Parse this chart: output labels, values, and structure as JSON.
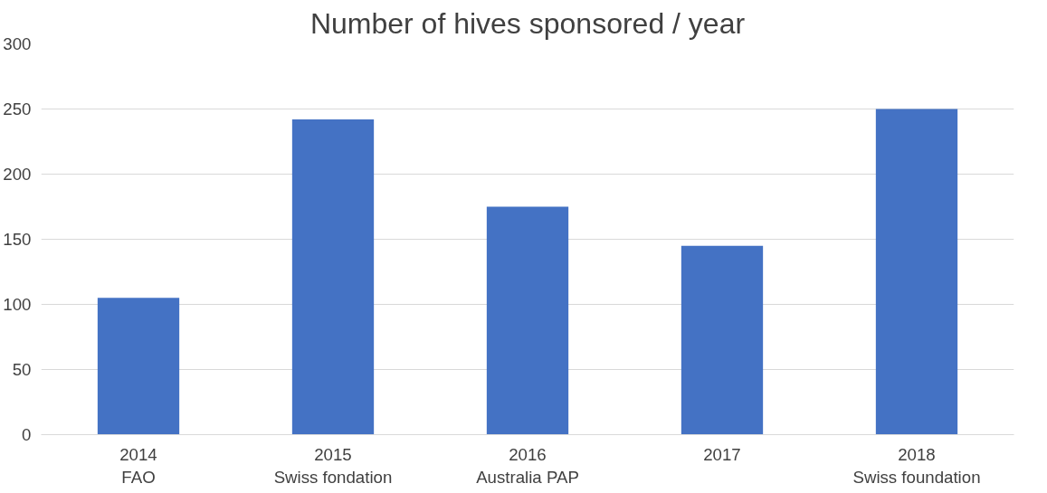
{
  "chart_data": {
    "type": "bar",
    "title": "Number of hives sponsored / year",
    "categories": [
      "2014\nFAO",
      "2015\nSwiss fondation",
      "2016\nAustralia PAP",
      "2017",
      "2018\nSwiss foundation"
    ],
    "series": [
      {
        "color": "#4472c4",
        "values": [
          105,
          242,
          175,
          145,
          250
        ]
      }
    ],
    "ylim": [
      0,
      300
    ],
    "yticks": [
      0,
      50,
      100,
      150,
      200,
      250,
      300
    ],
    "grid": "y"
  }
}
